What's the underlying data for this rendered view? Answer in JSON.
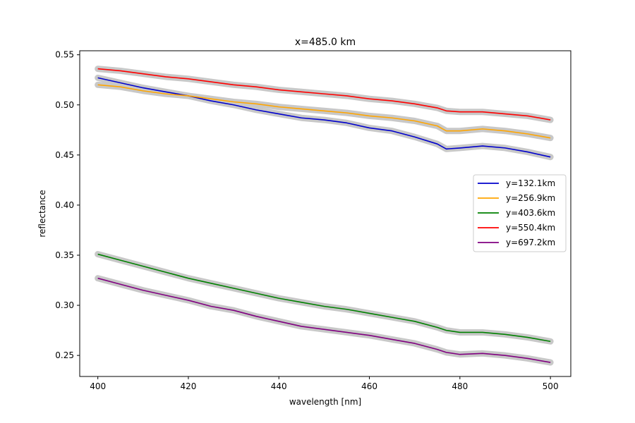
{
  "chart_data": {
    "type": "line",
    "title": "x=485.0 km",
    "xlabel": "wavelength [nm]",
    "ylabel": "reflectance",
    "xlim": [
      396.0,
      504.5
    ],
    "ylim": [
      0.229,
      0.554
    ],
    "xticks": [
      400,
      420,
      440,
      460,
      480,
      500
    ],
    "xtick_labels": [
      "400",
      "420",
      "440",
      "460",
      "480",
      "500"
    ],
    "yticks": [
      0.25,
      0.3,
      0.35,
      0.4,
      0.45,
      0.5,
      0.55
    ],
    "ytick_labels": [
      "0.25",
      "0.30",
      "0.35",
      "0.40",
      "0.45",
      "0.50",
      "0.55"
    ],
    "grid": false,
    "legend_position": "center-right",
    "band_color": "#c8c8c8",
    "series": [
      {
        "name": "y=132.1km",
        "color": "#0000cc",
        "x": [
          400,
          405,
          410,
          415,
          420,
          425,
          430,
          435,
          440,
          445,
          450,
          455,
          460,
          465,
          470,
          475,
          477,
          480,
          485,
          490,
          495,
          500
        ],
        "y": [
          0.527,
          0.522,
          0.517,
          0.513,
          0.509,
          0.504,
          0.5,
          0.495,
          0.491,
          0.487,
          0.485,
          0.482,
          0.477,
          0.474,
          0.468,
          0.461,
          0.456,
          0.457,
          0.459,
          0.457,
          0.453,
          0.448
        ]
      },
      {
        "name": "y=256.9km",
        "color": "#ffa500",
        "x": [
          400,
          405,
          410,
          415,
          420,
          425,
          430,
          435,
          440,
          445,
          450,
          455,
          460,
          465,
          470,
          475,
          477,
          480,
          485,
          490,
          495,
          500
        ],
        "y": [
          0.52,
          0.518,
          0.514,
          0.511,
          0.509,
          0.506,
          0.503,
          0.501,
          0.498,
          0.496,
          0.494,
          0.492,
          0.489,
          0.487,
          0.484,
          0.479,
          0.474,
          0.474,
          0.476,
          0.474,
          0.471,
          0.467
        ]
      },
      {
        "name": "y=403.6km",
        "color": "#008000",
        "x": [
          400,
          405,
          410,
          415,
          420,
          425,
          430,
          435,
          440,
          445,
          450,
          455,
          460,
          465,
          470,
          475,
          477,
          480,
          485,
          490,
          495,
          500
        ],
        "y": [
          0.351,
          0.345,
          0.339,
          0.333,
          0.327,
          0.322,
          0.317,
          0.312,
          0.307,
          0.303,
          0.299,
          0.296,
          0.292,
          0.288,
          0.284,
          0.278,
          0.275,
          0.273,
          0.273,
          0.271,
          0.268,
          0.264
        ]
      },
      {
        "name": "y=550.4km",
        "color": "#ff0000",
        "x": [
          400,
          405,
          410,
          415,
          420,
          425,
          430,
          435,
          440,
          445,
          450,
          455,
          460,
          465,
          470,
          475,
          477,
          480,
          485,
          490,
          495,
          500
        ],
        "y": [
          0.536,
          0.534,
          0.531,
          0.528,
          0.526,
          0.523,
          0.52,
          0.518,
          0.515,
          0.513,
          0.511,
          0.509,
          0.506,
          0.504,
          0.501,
          0.497,
          0.494,
          0.493,
          0.493,
          0.491,
          0.489,
          0.485
        ]
      },
      {
        "name": "y=697.2km",
        "color": "#800080",
        "x": [
          400,
          405,
          410,
          415,
          420,
          425,
          430,
          435,
          440,
          445,
          450,
          455,
          460,
          465,
          470,
          475,
          477,
          480,
          485,
          490,
          495,
          500
        ],
        "y": [
          0.327,
          0.321,
          0.315,
          0.31,
          0.305,
          0.299,
          0.295,
          0.289,
          0.284,
          0.279,
          0.276,
          0.273,
          0.27,
          0.266,
          0.262,
          0.256,
          0.253,
          0.251,
          0.252,
          0.25,
          0.247,
          0.243
        ]
      }
    ]
  }
}
